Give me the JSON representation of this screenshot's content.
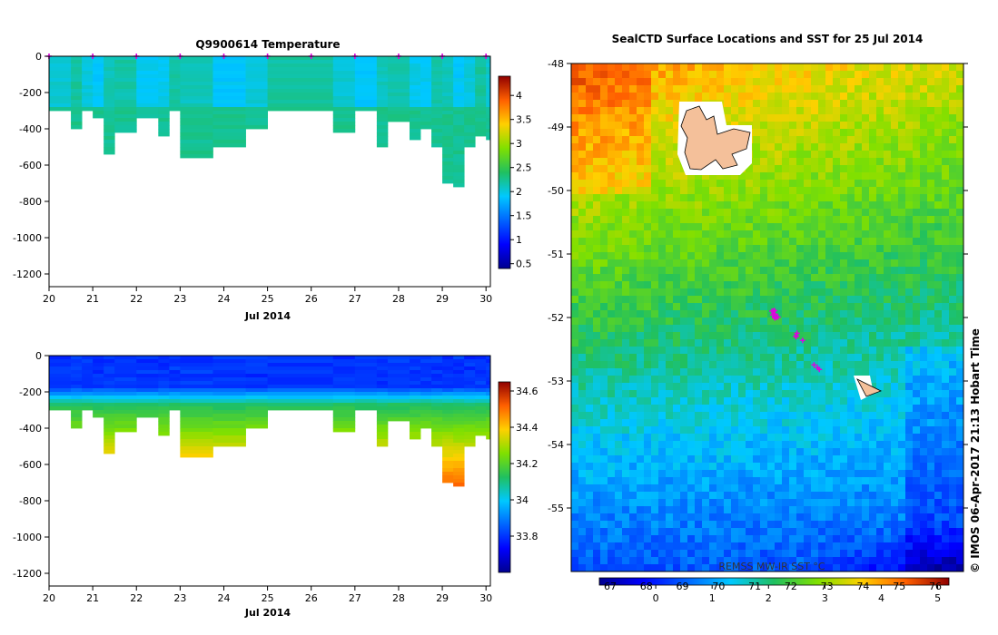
{
  "chart_data": [
    {
      "type": "heatmap",
      "title": "Q9900614  Temperature",
      "xlabel": "Jul 2014",
      "x_ticks": [
        "20",
        "21",
        "22",
        "23",
        "24",
        "25",
        "26",
        "27",
        "28",
        "29",
        "30"
      ],
      "y_ticks": [
        "0",
        "-200",
        "-400",
        "-600",
        "-800",
        "-1000",
        "-1200"
      ],
      "ylim": [
        -1270,
        0
      ],
      "xlim": [
        20,
        30.1
      ],
      "colorbar": {
        "ticks": [
          "0.5",
          "1",
          "1.5",
          "2",
          "2.5",
          "3",
          "3.5",
          "4"
        ],
        "range": [
          0.4,
          4.4
        ]
      },
      "profiles": [
        {
          "x": 20.0,
          "depth": 300
        },
        {
          "x": 20.5,
          "depth": 390
        },
        {
          "x": 20.75,
          "depth": 300
        },
        {
          "x": 21.0,
          "depth": 330
        },
        {
          "x": 21.25,
          "depth": 530
        },
        {
          "x": 21.5,
          "depth": 410
        },
        {
          "x": 22.0,
          "depth": 330
        },
        {
          "x": 22.5,
          "depth": 430
        },
        {
          "x": 22.75,
          "depth": 300
        },
        {
          "x": 23.0,
          "depth": 560
        },
        {
          "x": 23.75,
          "depth": 500
        },
        {
          "x": 24.5,
          "depth": 400
        },
        {
          "x": 25.0,
          "depth": 300
        },
        {
          "x": 26.5,
          "depth": 420
        },
        {
          "x": 27.0,
          "depth": 300
        },
        {
          "x": 27.5,
          "depth": 490
        },
        {
          "x": 27.75,
          "depth": 350
        },
        {
          "x": 28.25,
          "depth": 450
        },
        {
          "x": 28.5,
          "depth": 400
        },
        {
          "x": 28.75,
          "depth": 490
        },
        {
          "x": 29.0,
          "depth": 700
        },
        {
          "x": 29.25,
          "depth": 710
        },
        {
          "x": 29.5,
          "depth": 490
        },
        {
          "x": 29.75,
          "depth": 430
        },
        {
          "x": 30.0,
          "depth": 450
        }
      ],
      "surface_markers_x": [
        20.0,
        21.0,
        22.0,
        23.0,
        24.0,
        25.0,
        26.0,
        27.0,
        28.0,
        29.0,
        30.0
      ]
    },
    {
      "type": "heatmap",
      "title": "",
      "xlabel": "Jul 2014",
      "x_ticks": [
        "20",
        "21",
        "22",
        "23",
        "24",
        "25",
        "26",
        "27",
        "28",
        "29",
        "30"
      ],
      "y_ticks": [
        "0",
        "-200",
        "-400",
        "-600",
        "-800",
        "-1000",
        "-1200"
      ],
      "ylim": [
        -1270,
        0
      ],
      "xlim": [
        20,
        30.1
      ],
      "colorbar": {
        "ticks": [
          "33.8",
          "34",
          "34.2",
          "34.4",
          "34.6"
        ],
        "range": [
          33.6,
          34.65
        ]
      }
    },
    {
      "type": "heatmap",
      "title": "SealCTD Surface Locations and SST for 25 Jul 2014",
      "y_ticks": [
        "-48",
        "-49",
        "-50",
        "-51",
        "-52",
        "-53",
        "-54",
        "-55"
      ],
      "ylim": [
        -56.0,
        -48.0
      ],
      "colorbar_label": "REMSS MW-IR SST °C",
      "colorbar_ticks_top": [
        "67",
        "68",
        "69",
        "70",
        "71",
        "72",
        "73",
        "74",
        "75",
        "76"
      ],
      "colorbar_ticks_bottom": [
        "0",
        "1",
        "2",
        "3",
        "4",
        "5"
      ],
      "colorbar_range": [
        -1,
        5.2
      ],
      "islands": [
        "Kerguelen",
        "Heard"
      ],
      "seal_track": [
        {
          "lat": -51.95,
          "count": 9
        },
        {
          "lat": -52.3,
          "count": 4
        },
        {
          "lat": -52.8,
          "count": 3
        }
      ]
    }
  ],
  "footer": {
    "credit": "©  IMOS 06-Apr-2017 21:13 Hobart Time"
  },
  "colors": {
    "marker": "#e000e0",
    "land": "#f4c09a"
  }
}
